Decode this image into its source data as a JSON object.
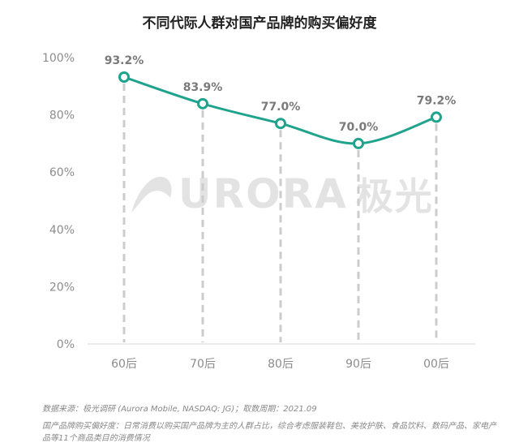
{
  "chart_data": {
    "type": "line",
    "title": "不同代际人群对国产品牌的购买偏好度",
    "categories": [
      "60后",
      "70后",
      "80后",
      "90后",
      "00后"
    ],
    "values": [
      93.2,
      83.9,
      77.0,
      70.0,
      79.2
    ],
    "value_labels": [
      "93.2%",
      "83.9%",
      "77.0%",
      "70.0%",
      "79.2%"
    ],
    "y_ticks": [
      "0%",
      "20%",
      "40%",
      "60%",
      "80%",
      "100%"
    ],
    "ylim": [
      0,
      100
    ],
    "grid": false,
    "line_color": "#1fa38d",
    "drop_line_color": "#cccccc"
  },
  "watermark": {
    "text": "URORA",
    "cn": "极光"
  },
  "footnotes": {
    "source": "数据来源：极光调研 (Aurora Mobile, NASDAQ: JG)；取数周期：2021.09",
    "definition": "国产品牌购买偏好度：日常消费以购买国产品牌为主的人群占比，综合考虑服装鞋包、美妆护肤、食品饮料、数码产品、家电产品等11个商品类目的消费情况"
  }
}
